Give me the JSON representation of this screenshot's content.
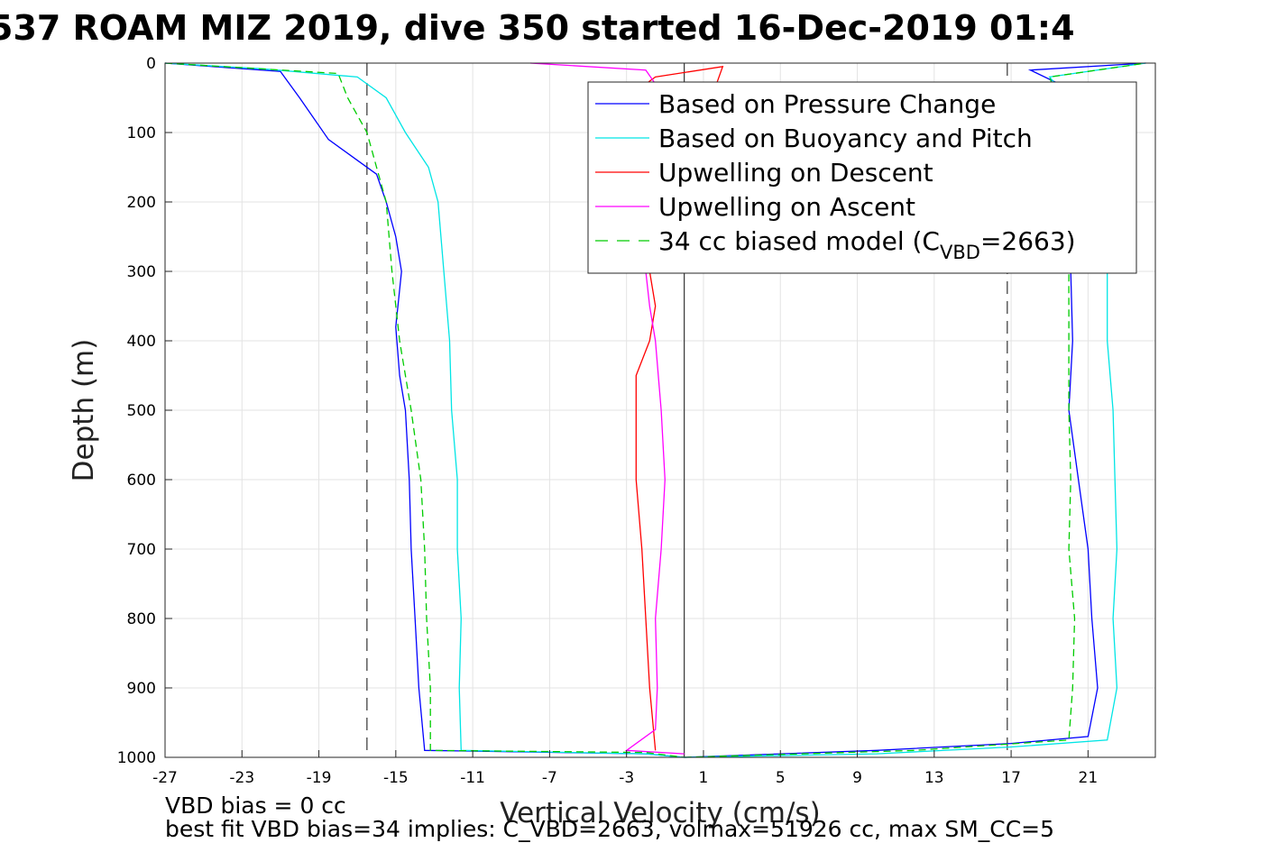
{
  "chart_data": {
    "type": "line",
    "title": "537 ROAM MIZ 2019, dive 350 started 16-Dec-2019 01:4",
    "xlabel": "Vertical Velocity (cm/s)",
    "ylabel": "Depth (m)",
    "xlim": [
      -27,
      24.5
    ],
    "ylim": [
      0,
      1000
    ],
    "y_reversed": true,
    "grid": true,
    "xticks": [
      -27,
      -23,
      -19,
      -15,
      -11,
      -7,
      -3,
      1,
      5,
      9,
      13,
      17,
      21
    ],
    "yticks": [
      0,
      100,
      200,
      300,
      400,
      500,
      600,
      700,
      800,
      900,
      1000
    ],
    "legend_position": "top-right",
    "vertical_lines": [
      {
        "x": -16.5,
        "style": "dashed"
      },
      {
        "x": 0,
        "style": "solid"
      },
      {
        "x": 16.8,
        "style": "dashed"
      }
    ],
    "series": [
      {
        "name": "Based on Pressure Change",
        "color": "#0000ff",
        "segments": [
          [
            [
              -27,
              0
            ],
            [
              -21,
              12
            ],
            [
              -20,
              50
            ],
            [
              -18.5,
              110
            ],
            [
              -17,
              140
            ],
            [
              -16,
              160
            ],
            [
              -15.5,
              200
            ],
            [
              -15,
              250
            ],
            [
              -14.7,
              300
            ],
            [
              -15,
              380
            ],
            [
              -14.8,
              450
            ],
            [
              -14.5,
              500
            ],
            [
              -14.3,
              600
            ],
            [
              -14.2,
              700
            ],
            [
              -14,
              800
            ],
            [
              -13.8,
              900
            ],
            [
              -13.5,
              990
            ],
            [
              -2,
              995
            ],
            [
              0,
              1000
            ]
          ],
          [
            [
              0,
              1000
            ],
            [
              10,
              990
            ],
            [
              17,
              980
            ],
            [
              21,
              970
            ],
            [
              21.5,
              900
            ],
            [
              21.2,
              800
            ],
            [
              21,
              700
            ],
            [
              20.5,
              600
            ],
            [
              20,
              500
            ],
            [
              20.2,
              400
            ],
            [
              20.1,
              300
            ],
            [
              21,
              200
            ],
            [
              21,
              50
            ],
            [
              18,
              10
            ],
            [
              24,
              0
            ]
          ]
        ]
      },
      {
        "name": "Based on Buoyancy and Pitch",
        "color": "#00e5e5",
        "segments": [
          [
            [
              -27,
              0
            ],
            [
              -22,
              8
            ],
            [
              -17,
              20
            ],
            [
              -15.5,
              50
            ],
            [
              -14.5,
              100
            ],
            [
              -13.3,
              150
            ],
            [
              -12.8,
              200
            ],
            [
              -12.5,
              300
            ],
            [
              -12.2,
              400
            ],
            [
              -12.1,
              500
            ],
            [
              -11.8,
              600
            ],
            [
              -11.8,
              700
            ],
            [
              -11.6,
              800
            ],
            [
              -11.7,
              900
            ],
            [
              -11.6,
              990
            ],
            [
              -2,
              995
            ],
            [
              0,
              1000
            ]
          ],
          [
            [
              0,
              1000
            ],
            [
              10,
              995
            ],
            [
              17,
              985
            ],
            [
              22,
              975
            ],
            [
              22.5,
              900
            ],
            [
              22.3,
              800
            ],
            [
              22.5,
              700
            ],
            [
              22.4,
              600
            ],
            [
              22.3,
              500
            ],
            [
              22,
              400
            ],
            [
              22,
              300
            ],
            [
              21.8,
              200
            ],
            [
              21.5,
              100
            ],
            [
              19,
              20
            ],
            [
              24,
              0
            ]
          ]
        ]
      },
      {
        "name": "Upwelling on Descent",
        "color": "#ff0000",
        "segments": [
          [
            [
              -5,
              50
            ],
            [
              -2,
              48
            ],
            [
              -1.5,
              40
            ],
            [
              -2,
              30
            ],
            [
              -1.5,
              20
            ],
            [
              2,
              5
            ],
            [
              -1.8,
              300
            ],
            [
              -1.5,
              350
            ],
            [
              -1.8,
              400
            ],
            [
              -2.5,
              450
            ],
            [
              -2.5,
              500
            ],
            [
              -2.5,
              600
            ],
            [
              -2.2,
              700
            ],
            [
              -2,
              800
            ],
            [
              -1.8,
              900
            ],
            [
              -1.5,
              990
            ]
          ]
        ]
      },
      {
        "name": "Upwelling on Ascent",
        "color": "#ff00ff",
        "segments": [
          [
            [
              -8,
              0
            ],
            [
              -2,
              10
            ],
            [
              -1.5,
              30
            ],
            [
              -2,
              300
            ],
            [
              -1.8,
              350
            ],
            [
              -1.5,
              400
            ],
            [
              -1.2,
              500
            ],
            [
              -1,
              600
            ],
            [
              -1.2,
              700
            ],
            [
              -1.5,
              800
            ],
            [
              -1.4,
              900
            ],
            [
              -1.5,
              960
            ],
            [
              -3,
              990
            ],
            [
              0,
              995
            ]
          ]
        ]
      },
      {
        "name": "34 cc biased model",
        "name_subscript": "VBD",
        "name_suffix": "=2663)",
        "name_prefix": "34 cc biased model (C",
        "color": "#00cc00",
        "dashed": true,
        "segments": [
          [
            [
              -27,
              0
            ],
            [
              -18,
              15
            ],
            [
              -17.5,
              50
            ],
            [
              -16.5,
              100
            ],
            [
              -16,
              150
            ],
            [
              -15.5,
              200
            ],
            [
              -15.2,
              300
            ],
            [
              -14.8,
              400
            ],
            [
              -14.2,
              500
            ],
            [
              -13.7,
              600
            ],
            [
              -13.5,
              700
            ],
            [
              -13.4,
              800
            ],
            [
              -13.2,
              900
            ],
            [
              -13.2,
              990
            ],
            [
              -2,
              993
            ],
            [
              0,
              1000
            ]
          ],
          [
            [
              0,
              1000
            ],
            [
              12,
              990
            ],
            [
              20,
              975
            ],
            [
              20.2,
              900
            ],
            [
              20.3,
              800
            ],
            [
              20,
              700
            ],
            [
              20.1,
              600
            ],
            [
              20,
              500
            ],
            [
              20,
              400
            ],
            [
              20,
              300
            ],
            [
              20,
              100
            ],
            [
              19,
              20
            ],
            [
              24,
              0
            ]
          ]
        ]
      }
    ],
    "footnotes": [
      "VBD bias = 0 cc",
      "best fit VBD bias=34 implies: C_VBD=2663, volmax=51926 cc, max SM_CC=5"
    ]
  }
}
